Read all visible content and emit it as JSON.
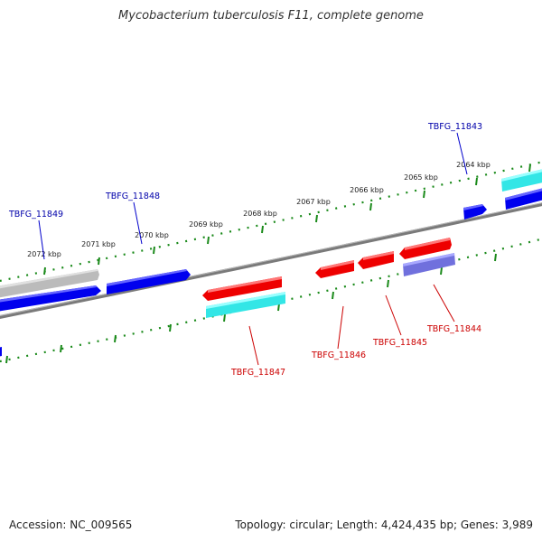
{
  "header": {
    "title": "Mycobacterium tuberculosis F11, complete genome"
  },
  "footer": {
    "accession": "Accession: NC_009565",
    "summary": "Topology: circular; Length: 4,424,435 bp; Genes: 3,989"
  },
  "colors": {
    "forward_gene": "#0000ee",
    "reverse_gene": "#ee0000",
    "cyan_feature": "#33e6e6",
    "purple_feature": "#7070dd",
    "gray_feature": "#bbbbbb",
    "backbone": "#808080",
    "ruler_ticks": "#1a8a1a",
    "label_forward": "#0000aa",
    "label_reverse": "#cc0000"
  },
  "ruler": {
    "labels": [
      "2072 kbp",
      "2071 kbp",
      "2070 kbp",
      "2069 kbp",
      "2068 kbp",
      "2067 kbp",
      "2066 kbp",
      "2065 kbp",
      "2064 kbp"
    ]
  },
  "genes": [
    {
      "label": "TBFG_11849",
      "strand": "forward"
    },
    {
      "label": "TBFG_11848",
      "strand": "forward"
    },
    {
      "label": "TBFG_11843",
      "strand": "forward"
    },
    {
      "label": "TBFG_11847",
      "strand": "reverse"
    },
    {
      "label": "TBFG_11846",
      "strand": "reverse"
    },
    {
      "label": "TBFG_11845",
      "strand": "reverse"
    },
    {
      "label": "TBFG_11844",
      "strand": "reverse"
    }
  ]
}
